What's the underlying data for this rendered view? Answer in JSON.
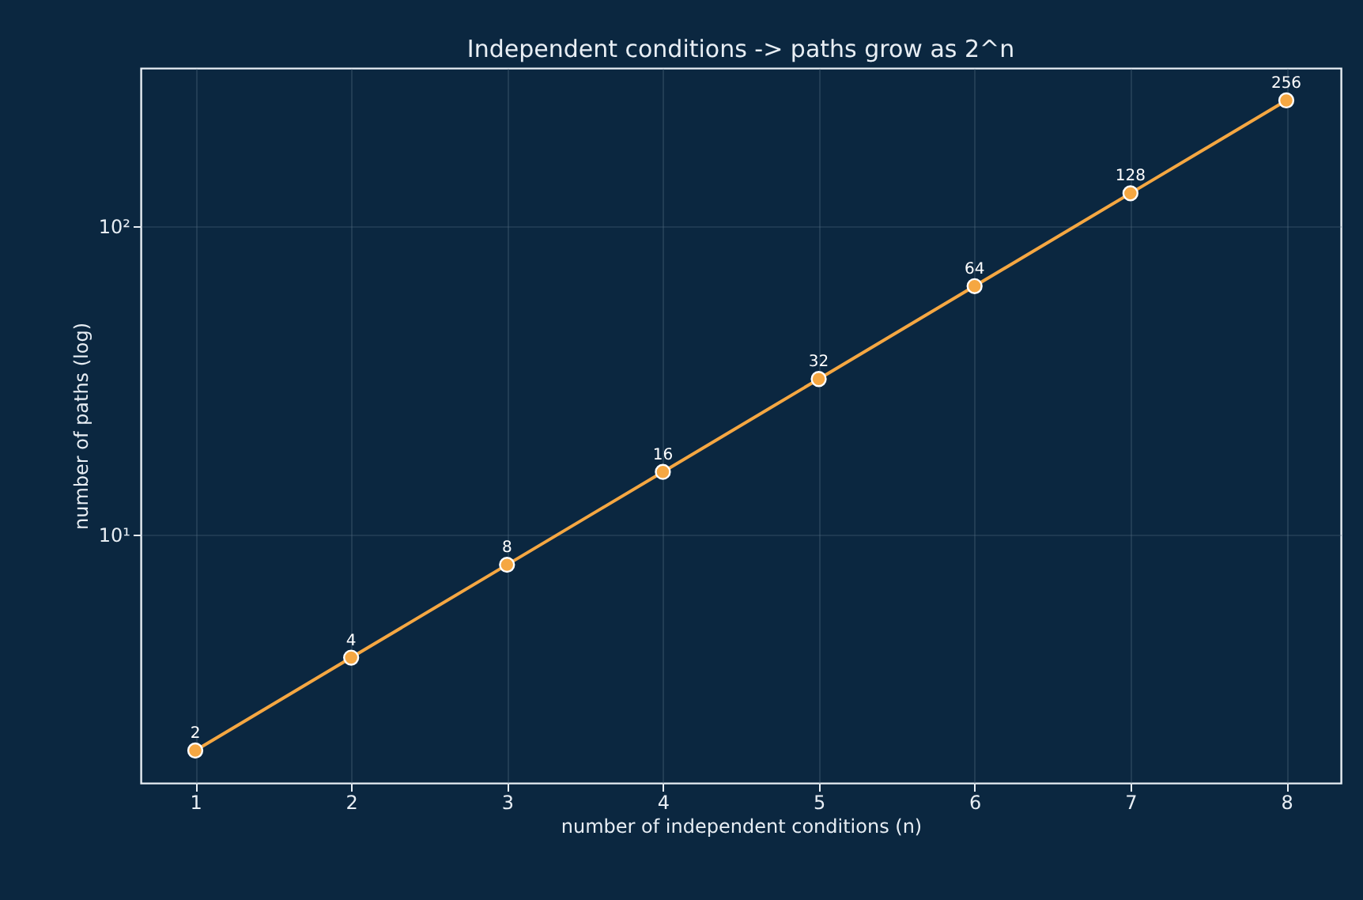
{
  "chart_data": {
    "type": "line",
    "title": "Independent conditions -> paths grow as 2^n",
    "xlabel": "number of independent conditions (n)",
    "ylabel": "number of paths (log)",
    "x": [
      1,
      2,
      3,
      4,
      5,
      6,
      7,
      8
    ],
    "series": [
      {
        "color": "#f5a742",
        "values": [
          2,
          4,
          8,
          16,
          32,
          64,
          128,
          256
        ]
      }
    ],
    "xlim": [
      0.65,
      8.35
    ],
    "xticks": [
      1,
      2,
      3,
      4,
      5,
      6,
      7,
      8
    ],
    "ylim": [
      1.57,
      326
    ],
    "yticks": [
      {
        "value": 10,
        "label": "10¹"
      },
      {
        "value": 100,
        "label": "10²"
      }
    ],
    "log": "y",
    "grid": true,
    "marker": "circle",
    "line_style": "solid",
    "data_labels": true
  }
}
